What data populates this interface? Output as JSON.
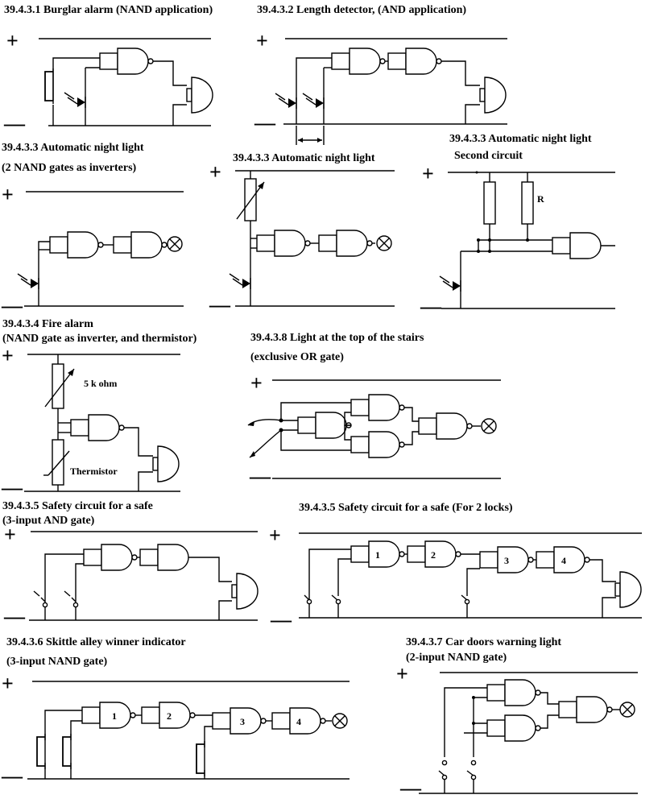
{
  "titles": {
    "burglar": "39.4.3.1 Burglar alarm (NAND application)",
    "length": "39.4.3.2 Length detector, (AND application)",
    "night1_line1": "39.4.3.3 Automatic night light",
    "night1_line2": "(2 NAND gates as inverters)",
    "night2": "39.4.3.3 Automatic night light",
    "night3_line1": "39.4.3.3 Automatic night light",
    "night3_line2": "Second circuit",
    "fire_line1": "39.4.3.4 Fire alarm",
    "fire_line2": "(NAND gate as inverter, and thermistor)",
    "stairs_line1": "39.4.3.8 Light at the top of the stairs",
    "stairs_line2": "(exclusive OR gate)",
    "safe1_line1": "39.4.3.5 Safety circuit for a safe",
    "safe1_line2": "(3-input AND gate)",
    "safe2": "39.4.3.5 Safety circuit for a safe   (For 2 locks)",
    "skittle_line1": "39.4.3.6 Skittle alley winner indicator",
    "skittle_line2": "(3-input NAND gate)",
    "car_line1": "39.4.3.7 Car doors warning light",
    "car_line2": "(2-input NAND gate)"
  },
  "labels": {
    "plus": "+",
    "minus": "—",
    "resistor_r": "R",
    "five_k": "5 k ohm",
    "thermistor": "Thermistor",
    "gate_1": "1",
    "gate_2": "2",
    "gate_3": "3",
    "gate_4": "4"
  }
}
